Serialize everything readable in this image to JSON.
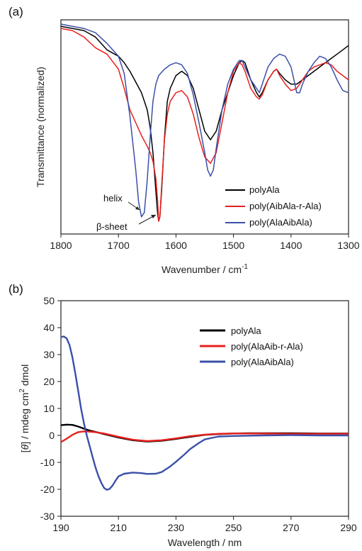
{
  "chart_data": [
    {
      "panel_label": "(a)",
      "type": "line",
      "xlabel": "Wavenumber / cm",
      "xlabel_sup": "-1",
      "ylabel": "Transmittance (normalized)",
      "xlim": [
        1800,
        1300
      ],
      "x_reversed": true,
      "ylim": [
        0,
        1
      ],
      "xticks": [
        1800,
        1700,
        1600,
        1500,
        1400,
        1300
      ],
      "legend_position": "bottom-right",
      "annotations": [
        {
          "text": "helix",
          "x": 1660,
          "y": 0.08
        },
        {
          "text": "β-sheet",
          "x": 1630,
          "y": 0.04
        }
      ],
      "series": [
        {
          "name": "polyAla",
          "color": "#000000",
          "x": [
            1800,
            1780,
            1760,
            1740,
            1720,
            1700,
            1690,
            1680,
            1670,
            1660,
            1650,
            1645,
            1640,
            1635,
            1632,
            1630,
            1628,
            1625,
            1620,
            1615,
            1610,
            1600,
            1590,
            1580,
            1570,
            1560,
            1550,
            1540,
            1530,
            1520,
            1510,
            1500,
            1490,
            1485,
            1480,
            1470,
            1460,
            1455,
            1450,
            1440,
            1430,
            1425,
            1420,
            1410,
            1400,
            1390,
            1380,
            1370,
            1360,
            1350,
            1340,
            1330,
            1320,
            1310,
            1300
          ],
          "y": [
            0.97,
            0.96,
            0.95,
            0.92,
            0.86,
            0.83,
            0.8,
            0.76,
            0.71,
            0.66,
            0.58,
            0.5,
            0.38,
            0.2,
            0.1,
            0.06,
            0.08,
            0.2,
            0.45,
            0.62,
            0.68,
            0.74,
            0.76,
            0.74,
            0.68,
            0.58,
            0.48,
            0.44,
            0.48,
            0.58,
            0.66,
            0.74,
            0.8,
            0.81,
            0.8,
            0.72,
            0.66,
            0.64,
            0.66,
            0.72,
            0.76,
            0.77,
            0.75,
            0.72,
            0.7,
            0.7,
            0.72,
            0.74,
            0.76,
            0.78,
            0.8,
            0.82,
            0.84,
            0.86,
            0.88
          ]
        },
        {
          "name": "poly(AibAla-r-Ala)",
          "color": "#e8201e",
          "x": [
            1800,
            1780,
            1760,
            1740,
            1720,
            1700,
            1690,
            1680,
            1670,
            1660,
            1650,
            1645,
            1640,
            1635,
            1632,
            1630,
            1628,
            1625,
            1620,
            1615,
            1610,
            1600,
            1590,
            1580,
            1570,
            1560,
            1550,
            1540,
            1530,
            1520,
            1510,
            1500,
            1490,
            1485,
            1480,
            1470,
            1460,
            1455,
            1450,
            1440,
            1430,
            1425,
            1420,
            1410,
            1400,
            1390,
            1380,
            1370,
            1360,
            1350,
            1340,
            1330,
            1320,
            1310,
            1300
          ],
          "y": [
            0.96,
            0.95,
            0.92,
            0.87,
            0.84,
            0.77,
            0.68,
            0.58,
            0.52,
            0.46,
            0.41,
            0.38,
            0.34,
            0.26,
            0.16,
            0.06,
            0.08,
            0.22,
            0.44,
            0.56,
            0.62,
            0.66,
            0.67,
            0.64,
            0.56,
            0.45,
            0.36,
            0.33,
            0.38,
            0.52,
            0.66,
            0.76,
            0.8,
            0.79,
            0.76,
            0.68,
            0.64,
            0.63,
            0.65,
            0.72,
            0.76,
            0.77,
            0.74,
            0.7,
            0.67,
            0.68,
            0.72,
            0.76,
            0.78,
            0.79,
            0.8,
            0.79,
            0.76,
            0.74,
            0.72
          ]
        },
        {
          "name": "poly(AlaAibAla)",
          "color": "#3b50a8",
          "x": [
            1800,
            1780,
            1760,
            1740,
            1720,
            1700,
            1690,
            1680,
            1670,
            1665,
            1660,
            1655,
            1650,
            1645,
            1640,
            1635,
            1630,
            1620,
            1610,
            1600,
            1590,
            1580,
            1570,
            1560,
            1550,
            1545,
            1540,
            1535,
            1530,
            1520,
            1510,
            1500,
            1490,
            1485,
            1480,
            1470,
            1460,
            1455,
            1450,
            1440,
            1430,
            1420,
            1410,
            1400,
            1395,
            1390,
            1385,
            1380,
            1370,
            1360,
            1350,
            1340,
            1330,
            1320,
            1310,
            1300
          ],
          "y": [
            0.98,
            0.97,
            0.96,
            0.94,
            0.89,
            0.83,
            0.75,
            0.55,
            0.3,
            0.15,
            0.08,
            0.1,
            0.25,
            0.45,
            0.62,
            0.7,
            0.74,
            0.77,
            0.79,
            0.8,
            0.79,
            0.75,
            0.65,
            0.52,
            0.38,
            0.3,
            0.27,
            0.3,
            0.4,
            0.58,
            0.7,
            0.77,
            0.81,
            0.81,
            0.78,
            0.72,
            0.68,
            0.66,
            0.7,
            0.78,
            0.82,
            0.84,
            0.83,
            0.78,
            0.72,
            0.66,
            0.66,
            0.7,
            0.76,
            0.8,
            0.83,
            0.82,
            0.78,
            0.72,
            0.67,
            0.66
          ]
        }
      ]
    },
    {
      "panel_label": "(b)",
      "type": "line",
      "xlabel": "Wavelength / nm",
      "ylabel_theta": "θ",
      "ylabel_rest": " / mdeg cm",
      "ylabel_sup": "2",
      "ylabel_end": " dmol",
      "xlim": [
        190,
        290
      ],
      "ylim": [
        -30,
        50
      ],
      "xticks": [
        190,
        210,
        230,
        250,
        270,
        290
      ],
      "yticks": [
        -30,
        -20,
        -10,
        0,
        10,
        20,
        30,
        40,
        50
      ],
      "legend_position": "top-right",
      "series": [
        {
          "name": "polyAla",
          "color": "#000000",
          "x": [
            190,
            192,
            194,
            196,
            198,
            200,
            202,
            205,
            210,
            215,
            220,
            225,
            230,
            235,
            240,
            245,
            250,
            255,
            260,
            270,
            280,
            290
          ],
          "y": [
            3.8,
            4.0,
            3.9,
            3.3,
            2.5,
            1.8,
            1.3,
            0.5,
            -0.8,
            -1.8,
            -2.3,
            -2.0,
            -1.3,
            -0.5,
            0.2,
            0.5,
            0.7,
            0.8,
            0.8,
            0.8,
            0.7,
            0.7
          ]
        },
        {
          "name": "poly(AlaAib-r-Ala)",
          "color": "#e8201e",
          "x": [
            190,
            192,
            194,
            196,
            198,
            200,
            202,
            205,
            210,
            215,
            220,
            225,
            230,
            235,
            240,
            245,
            250,
            255,
            260,
            270,
            280,
            290
          ],
          "y": [
            -2.5,
            -1.2,
            0.2,
            1.2,
            1.5,
            1.4,
            1.2,
            0.7,
            -0.5,
            -1.6,
            -2.1,
            -1.8,
            -1.1,
            -0.3,
            0.3,
            0.6,
            0.7,
            0.7,
            0.7,
            0.6,
            0.6,
            0.6
          ]
        },
        {
          "name": "poly(AlaAibAla)",
          "color": "#3b50a8",
          "x": [
            190,
            191,
            192,
            193,
            194,
            195,
            196,
            197,
            198,
            199,
            200,
            201,
            202,
            203,
            204,
            205,
            206,
            207,
            208,
            209,
            210,
            212,
            215,
            218,
            220,
            223,
            225,
            228,
            230,
            233,
            235,
            238,
            240,
            243,
            245,
            250,
            255,
            260,
            270,
            280,
            290
          ],
          "y": [
            36.5,
            36.7,
            36.0,
            33.5,
            29.0,
            23.0,
            16.5,
            10.0,
            4.5,
            0.0,
            -4.0,
            -8.0,
            -11.8,
            -15.0,
            -17.5,
            -19.5,
            -20.2,
            -19.8,
            -18.5,
            -16.8,
            -15.2,
            -14.2,
            -13.8,
            -14.0,
            -14.3,
            -14.2,
            -13.6,
            -11.5,
            -9.8,
            -7.0,
            -5.0,
            -2.8,
            -1.5,
            -0.8,
            -0.4,
            -0.2,
            -0.1,
            0.0,
            0.1,
            0.0,
            0.0
          ]
        }
      ]
    }
  ]
}
